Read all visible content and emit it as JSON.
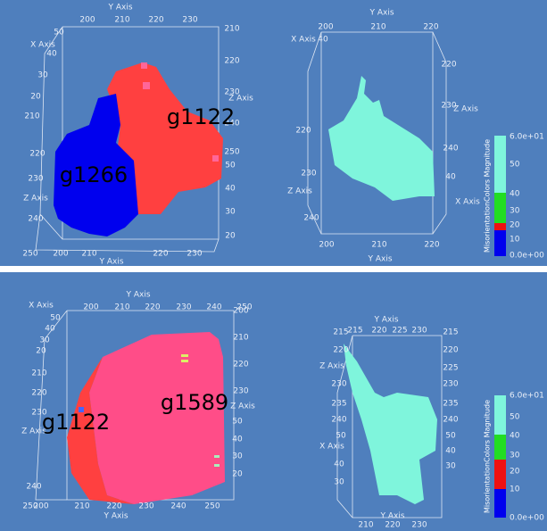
{
  "top": {
    "left_view": {
      "grains": [
        "g1122",
        "g1266"
      ],
      "labels": [
        "Y Axis",
        200,
        210,
        220,
        230,
        "X Axis",
        50,
        40,
        30,
        20,
        210,
        220,
        230,
        "Z Axis",
        240,
        250,
        200,
        210,
        220,
        230,
        "Y Axis",
        210,
        220,
        230,
        "Z Axis",
        240,
        250,
        50,
        40,
        30,
        20
      ]
    },
    "right_view": {
      "labels": [
        "Y Axis",
        200,
        210,
        220,
        "X Axis",
        40,
        220,
        230,
        "Z Axis",
        240,
        40,
        "X Axis",
        220,
        230,
        "Z Axis",
        240,
        200,
        210,
        220,
        "Y Axis"
      ]
    },
    "colorbar": {
      "title": "MisorientationColors Magnitude",
      "ticks": [
        "6.0e+01",
        50,
        40,
        30,
        20,
        10,
        "0.0e+00"
      ]
    }
  },
  "bottom": {
    "left_view": {
      "grains": [
        "g1589",
        "g1122"
      ],
      "labels": [
        "Y Axis",
        200,
        210,
        220,
        230,
        240,
        250,
        "X Axis",
        50,
        40,
        30,
        20,
        210,
        220,
        230,
        "Z Axis",
        240,
        250,
        200,
        210,
        220,
        230,
        240,
        250,
        "Y Axis",
        200,
        210,
        220,
        230,
        "Z Axis",
        50,
        40,
        30,
        20
      ]
    },
    "right_view": {
      "labels": [
        "Y Axis",
        215,
        220,
        225,
        230,
        215,
        220,
        "Z Axis",
        230,
        235,
        240,
        50,
        "X Axis",
        40,
        30,
        215,
        220,
        225,
        230,
        235,
        240,
        50,
        40,
        30,
        210,
        220,
        230,
        "Y Axis"
      ]
    },
    "colorbar": {
      "title": "MisorientationColors Magnitude",
      "ticks": [
        "6.0e+01",
        50,
        40,
        30,
        20,
        10,
        "0.0e+00"
      ]
    }
  }
}
